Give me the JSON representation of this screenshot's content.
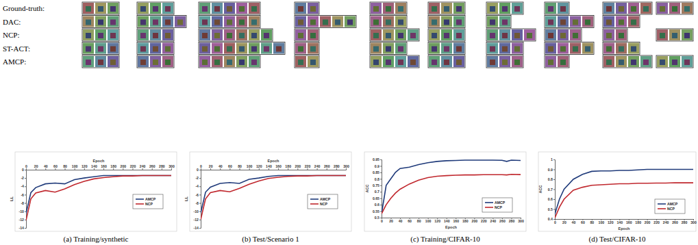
{
  "image_grid": {
    "row_labels": [
      "Ground-truth:",
      "DAC:",
      "NCP:",
      "ST-ACT:",
      "AMCP:"
    ],
    "images_per_cluster": [
      [
        3,
        3,
        5,
        2,
        3,
        3,
        3,
        2,
        4,
        3
      ],
      [
        3,
        4,
        5,
        5,
        3,
        3,
        2,
        4,
        3,
        null
      ],
      [
        3,
        3,
        6,
        2,
        4,
        3,
        4,
        3,
        2,
        3
      ],
      [
        3,
        3,
        7,
        2,
        3,
        3,
        3,
        4,
        3,
        null
      ],
      [
        3,
        3,
        5,
        2,
        4,
        3,
        3,
        2,
        4,
        3
      ]
    ]
  },
  "chart_data": [
    {
      "type": "line",
      "title": "(a) Training/synthetic",
      "x_label": "Epoch",
      "y_label": "LL",
      "x": [
        0,
        10,
        20,
        40,
        60,
        80,
        100,
        120,
        140,
        160,
        180,
        200,
        220,
        240,
        260,
        280,
        300
      ],
      "series": [
        {
          "name": "AMCP",
          "color": "#1f3a7a",
          "values": [
            -10.5,
            -5.5,
            -4.3,
            -3.4,
            -3.2,
            -3.4,
            -2.4,
            -2.0,
            -1.7,
            -1.4,
            -1.4,
            -1.4,
            -1.4,
            -1.4,
            -1.4,
            -1.4,
            -1.4
          ]
        },
        {
          "name": "NCP",
          "color": "#c0272d",
          "values": [
            -12.2,
            -7.0,
            -5.6,
            -5.0,
            -5.4,
            -4.6,
            -3.6,
            -2.8,
            -2.2,
            -1.9,
            -1.7,
            -1.5,
            -1.5,
            -1.4,
            -1.4,
            -1.4,
            -1.4
          ]
        }
      ],
      "xlim": [
        0,
        300
      ],
      "xticks": [
        0,
        20,
        40,
        60,
        80,
        100,
        120,
        140,
        160,
        180,
        200,
        220,
        240,
        260,
        280,
        300
      ],
      "ylim": [
        -14,
        0
      ],
      "yticks": [
        -14,
        -12,
        -10,
        -8,
        -6,
        -4,
        -2,
        0
      ],
      "legend": "right"
    },
    {
      "type": "line",
      "title": "(b) Test/Scenario 1",
      "x_label": "Epoch",
      "y_label": "LL",
      "x": [
        0,
        10,
        20,
        40,
        60,
        80,
        100,
        120,
        140,
        160,
        180,
        200,
        220,
        240,
        260,
        280,
        300
      ],
      "series": [
        {
          "name": "AMCP",
          "color": "#1f3a7a",
          "values": [
            -10.4,
            -5.4,
            -4.2,
            -3.3,
            -3.1,
            -3.3,
            -2.3,
            -2.0,
            -1.6,
            -1.4,
            -1.4,
            -1.4,
            -1.4,
            -1.4,
            -1.4,
            -1.4,
            -1.4
          ]
        },
        {
          "name": "NCP",
          "color": "#c0272d",
          "values": [
            -12.0,
            -7.0,
            -5.5,
            -5.0,
            -5.3,
            -4.5,
            -3.5,
            -2.7,
            -2.1,
            -1.8,
            -1.6,
            -1.5,
            -1.5,
            -1.4,
            -1.4,
            -1.4,
            -1.4
          ]
        }
      ],
      "xlim": [
        0,
        300
      ],
      "xticks": [
        0,
        20,
        40,
        60,
        80,
        100,
        120,
        140,
        160,
        180,
        200,
        220,
        240,
        260,
        280,
        300
      ],
      "ylim": [
        -14,
        0
      ],
      "yticks": [
        -14,
        -12,
        -10,
        -8,
        -6,
        -4,
        -2,
        0
      ],
      "legend": "right"
    },
    {
      "type": "line",
      "title": "(c) Training/CIFAR-10",
      "x_label": "Epoch",
      "y_label": "ACC",
      "x": [
        0,
        10,
        20,
        30,
        40,
        60,
        80,
        100,
        120,
        140,
        160,
        180,
        200,
        220,
        240,
        260,
        270,
        280,
        300
      ],
      "series": [
        {
          "name": "AMCP",
          "color": "#1f3a7a",
          "values": [
            0.53,
            0.75,
            0.8,
            0.85,
            0.88,
            0.89,
            0.91,
            0.925,
            0.935,
            0.94,
            0.942,
            0.945,
            0.945,
            0.945,
            0.945,
            0.943,
            0.935,
            0.945,
            0.942
          ]
        },
        {
          "name": "NCP",
          "color": "#c0272d",
          "values": [
            0.53,
            0.6,
            0.65,
            0.69,
            0.72,
            0.76,
            0.79,
            0.81,
            0.82,
            0.825,
            0.828,
            0.83,
            0.83,
            0.832,
            0.832,
            0.832,
            0.83,
            0.835,
            0.833
          ]
        }
      ],
      "xlim": [
        0,
        300
      ],
      "xticks": [
        0,
        20,
        40,
        60,
        80,
        100,
        120,
        140,
        160,
        180,
        200,
        220,
        240,
        260,
        280,
        300
      ],
      "ylim": [
        0.5,
        0.95
      ],
      "yticks": [
        0.5,
        0.55,
        0.6,
        0.65,
        0.7,
        0.75,
        0.8,
        0.85,
        0.9,
        0.95
      ],
      "legend": "lower right"
    },
    {
      "type": "line",
      "title": "(d) Test/CIFAR-10",
      "x_label": "Epoch",
      "y_label": "ACC",
      "x": [
        0,
        10,
        20,
        40,
        60,
        80,
        100,
        120,
        140,
        160,
        180,
        200,
        220,
        240,
        260,
        280,
        300
      ],
      "series": [
        {
          "name": "AMCP",
          "color": "#1f3a7a",
          "values": [
            0.45,
            0.6,
            0.7,
            0.8,
            0.85,
            0.88,
            0.885,
            0.885,
            0.89,
            0.89,
            0.895,
            0.9,
            0.9,
            0.9,
            0.9,
            0.9,
            0.9
          ]
        },
        {
          "name": "NCP",
          "color": "#c0272d",
          "values": [
            0.41,
            0.52,
            0.6,
            0.69,
            0.72,
            0.74,
            0.745,
            0.75,
            0.755,
            0.755,
            0.76,
            0.76,
            0.762,
            0.762,
            0.765,
            0.765,
            0.765
          ]
        }
      ],
      "xlim": [
        0,
        300
      ],
      "xticks": [
        0,
        20,
        40,
        60,
        80,
        100,
        120,
        140,
        160,
        180,
        200,
        220,
        240,
        260,
        280,
        300
      ],
      "ylim": [
        0.4,
        1
      ],
      "yticks": [
        0.4,
        0.5,
        0.6,
        0.7,
        0.8,
        0.9,
        1
      ],
      "legend": "lower right"
    }
  ]
}
